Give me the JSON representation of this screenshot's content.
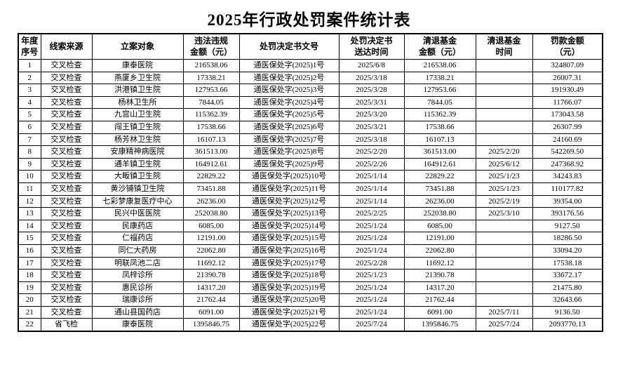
{
  "title": "2025年行政处罚案件统计表",
  "colors": {
    "text": "#000000",
    "border": "#000000",
    "background": "#ffffff"
  },
  "table": {
    "headers": [
      "年度\n序号",
      "线索来源",
      "立案对象",
      "违法违规\n金额（元）",
      "处罚决定书文号",
      "处罚决定书\n送达时间",
      "清退基金\n金额（元）",
      "清退基金\n时间",
      "罚款金额\n（元）"
    ],
    "rows": [
      [
        "1",
        "交叉检查",
        "康泰医院",
        "216538.06",
        "通医保处字(2025)1号",
        "2025/6/8",
        "216538.06",
        "",
        "324807.09"
      ],
      [
        "2",
        "交叉检查",
        "燕厦乡卫生院",
        "17338.21",
        "通医保处字(2025)2号",
        "2025/3/18",
        "17338.21",
        "",
        "26007.31"
      ],
      [
        "3",
        "交叉检查",
        "洪港镇卫生院",
        "127953.66",
        "通医保处字(2025)3号",
        "2025/3/28",
        "127953.66",
        "",
        "191930.49"
      ],
      [
        "4",
        "交叉检查",
        "杨林卫生所",
        "7844.05",
        "通医保处字(2025)4号",
        "2025/3/31",
        "7844.05",
        "",
        "11766.07"
      ],
      [
        "5",
        "交叉检查",
        "九宫山卫生院",
        "115362.39",
        "通医保处字(2025)5号",
        "2025/3/20",
        "115362.39",
        "",
        "173043.58"
      ],
      [
        "6",
        "交叉检查",
        "闯王镇卫生院",
        "17538.66",
        "通医保处字(2025)6号",
        "2025/3/21",
        "17538.66",
        "",
        "26307.99"
      ],
      [
        "7",
        "交叉检查",
        "杨芳林卫生院",
        "16107.13",
        "通医保处字(2025)7号",
        "2025/3/18",
        "16107.13",
        "",
        "24160.69"
      ],
      [
        "8",
        "交叉检查",
        "安康精神病医院",
        "361513.00",
        "通医保处字(2025)8号",
        "2025/2/20",
        "361513.00",
        "2025/2/20",
        "542269.50"
      ],
      [
        "9",
        "交叉检查",
        "通羊镇卫生院",
        "164912.61",
        "通医保处字(2025)9号",
        "2025/2/26",
        "164912.61",
        "2025/6/12",
        "247368.92"
      ],
      [
        "10",
        "交叉检查",
        "大畈镇卫生院",
        "22829.22",
        "通医保处字(2025)10号",
        "2025/1/14",
        "22829.22",
        "2025/1/23",
        "34243.83"
      ],
      [
        "11",
        "交叉检查",
        "黄沙铺镇卫生院",
        "73451.88",
        "通医保处字(2025)11号",
        "2025/1/14",
        "73451.88",
        "2025/1/23",
        "110177.82"
      ],
      [
        "12",
        "交叉检查",
        "七彩梦康复医疗中心",
        "26236.00",
        "通医保处字(2025)12号",
        "2025/1/14",
        "26236.00",
        "2025/2/19",
        "39354.00"
      ],
      [
        "13",
        "交叉检查",
        "民兴中医医院",
        "252038.80",
        "通医保处字(2025)13号",
        "2025/2/25",
        "252038.80",
        "2025/3/10",
        "393176.56"
      ],
      [
        "14",
        "交叉检查",
        "民康药店",
        "6085.00",
        "通医保处字(2025)14号",
        "2025/1/24",
        "6085.00",
        "",
        "9127.50"
      ],
      [
        "15",
        "交叉检查",
        "仁福药店",
        "12191.00",
        "通医保处字(2025)15号",
        "2025/1/24",
        "12191.00",
        "",
        "18286.50"
      ],
      [
        "16",
        "交叉检查",
        "同仁大药房",
        "22062.80",
        "通医保处字(2025)16号",
        "2025/1/24",
        "22062.80",
        "",
        "33094.20"
      ],
      [
        "17",
        "交叉检查",
        "明联凤池二店",
        "11692.12",
        "通医保处字(2025)17号",
        "2025/2/28",
        "11692.12",
        "",
        "17538.18"
      ],
      [
        "18",
        "交叉检查",
        "凤梓诊所",
        "21390.78",
        "通医保处字(2025)18号",
        "2025/1/23",
        "21390.78",
        "",
        "33672.17"
      ],
      [
        "19",
        "交叉检查",
        "惠民诊所",
        "14317.20",
        "通医保处字(2025)19号",
        "2025/1/24",
        "14317.20",
        "",
        "21475.80"
      ],
      [
        "20",
        "交叉检查",
        "瑞康诊所",
        "21762.44",
        "通医保处字(2025)20号",
        "2025/1/24",
        "21762.44",
        "",
        "32643.66"
      ],
      [
        "21",
        "交叉检查",
        "通山县国药店",
        "6091.00",
        "通医保处字(2025)21号",
        "2025/1/24",
        "6091.00",
        "2025/7/11",
        "9136.50"
      ],
      [
        "22",
        "省飞检",
        "康泰医院",
        "1395846.75",
        "通医保处字(2025)22号",
        "2025/7/24",
        "1395846.75",
        "2025/7/24",
        "2093770.13"
      ]
    ]
  }
}
